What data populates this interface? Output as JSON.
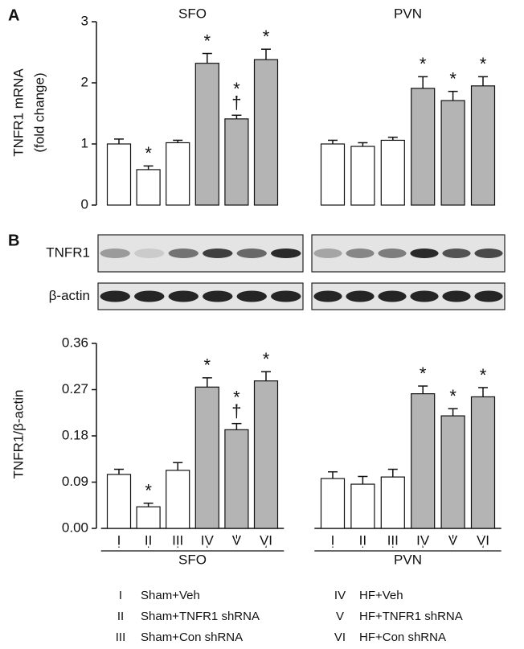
{
  "chart_data": [
    {
      "type": "bar",
      "panel": "A",
      "ylabel": [
        "TNFR1 mRNA",
        "(fold change)"
      ],
      "ylim": [
        0,
        3
      ],
      "yticks": [
        0,
        1,
        2,
        3
      ],
      "groups": [
        {
          "name": "SFO",
          "values": [
            1.0,
            0.58,
            1.02,
            2.32,
            1.41,
            2.38
          ],
          "errors": [
            0.08,
            0.06,
            0.04,
            0.16,
            0.06,
            0.17
          ],
          "colors": [
            "#ffffff",
            "#ffffff",
            "#ffffff",
            "#b4b4b4",
            "#b4b4b4",
            "#b4b4b4"
          ],
          "markers": [
            [],
            [
              "*"
            ],
            [],
            [
              "*"
            ],
            [
              "*",
              "†"
            ],
            [
              "*"
            ]
          ]
        },
        {
          "name": "PVN",
          "values": [
            1.0,
            0.96,
            1.06,
            1.91,
            1.71,
            1.95
          ],
          "errors": [
            0.06,
            0.06,
            0.05,
            0.19,
            0.15,
            0.15
          ],
          "colors": [
            "#ffffff",
            "#ffffff",
            "#ffffff",
            "#b4b4b4",
            "#b4b4b4",
            "#b4b4b4"
          ],
          "markers": [
            [],
            [],
            [],
            [
              "*"
            ],
            [
              "*"
            ],
            [
              "*"
            ]
          ]
        }
      ]
    },
    {
      "type": "bar",
      "panel": "B",
      "ylabel": [
        "TNFR1/β-actin"
      ],
      "blot_rows": [
        "TNFR1",
        "β-actin"
      ],
      "ylim": [
        0,
        0.36
      ],
      "yticks": [
        {
          "value": 0,
          "label": "0.00"
        },
        0.09,
        0.18,
        0.27,
        0.36
      ],
      "categories": [
        "I",
        "II",
        "III",
        "IV",
        "V",
        "VI"
      ],
      "groups": [
        {
          "name": "SFO",
          "values": [
            0.105,
            0.042,
            0.113,
            0.275,
            0.192,
            0.287
          ],
          "errors": [
            0.01,
            0.007,
            0.015,
            0.018,
            0.012,
            0.018
          ],
          "colors": [
            "#ffffff",
            "#ffffff",
            "#ffffff",
            "#b4b4b4",
            "#b4b4b4",
            "#b4b4b4"
          ],
          "markers": [
            [],
            [
              "*"
            ],
            [],
            [
              "*"
            ],
            [
              "*",
              "†"
            ],
            [
              "*"
            ]
          ]
        },
        {
          "name": "PVN",
          "values": [
            0.097,
            0.086,
            0.1,
            0.262,
            0.219,
            0.256
          ],
          "errors": [
            0.013,
            0.015,
            0.015,
            0.015,
            0.014,
            0.018
          ],
          "colors": [
            "#ffffff",
            "#ffffff",
            "#ffffff",
            "#b4b4b4",
            "#b4b4b4",
            "#b4b4b4"
          ],
          "markers": [
            [],
            [],
            [],
            [
              "*"
            ],
            [
              "*"
            ],
            [
              "*"
            ]
          ]
        }
      ]
    }
  ],
  "legend": [
    {
      "symbol": "I",
      "label": "Sham+Veh"
    },
    {
      "symbol": "IV",
      "label": "HF+Veh"
    },
    {
      "symbol": "II",
      "label": "Sham+TNFR1 shRNA"
    },
    {
      "symbol": "V",
      "label": "HF+TNFR1 shRNA"
    },
    {
      "symbol": "III",
      "label": "Sham+Con shRNA"
    },
    {
      "symbol": "VI",
      "label": "HF+Con shRNA"
    }
  ]
}
